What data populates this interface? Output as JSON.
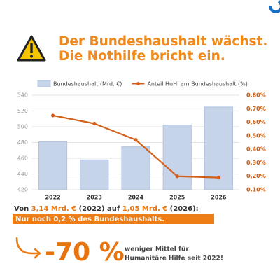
{
  "header": {
    "title_lines": [
      "Der Bundeshaushalt wächst.",
      "Die Nothilfe bricht ein."
    ]
  },
  "chart_data": {
    "type": "combo",
    "categories": [
      "2022",
      "2023",
      "2024",
      "2025",
      "2026"
    ],
    "series": [
      {
        "name": "Bundeshaushalt (Mrd. €)",
        "type": "bar",
        "color": "#c6d4ea",
        "values": [
          481,
          458,
          475,
          502,
          525
        ]
      },
      {
        "name": "Anteil HuHi am Bundeshaushalt (%)",
        "type": "line",
        "axis": "y2",
        "color": "#d2601a",
        "values": [
          0.65,
          0.59,
          0.47,
          0.2,
          0.19
        ]
      }
    ],
    "ylim": [
      420,
      540
    ],
    "yticks": [
      420,
      440,
      460,
      480,
      500,
      520,
      540
    ],
    "y2lim": [
      0.1,
      0.8
    ],
    "y2ticks": [
      {
        "value": 0.1,
        "label": "0,10%"
      },
      {
        "value": 0.2,
        "label": "0,20%"
      },
      {
        "value": 0.3,
        "label": "0,30%"
      },
      {
        "value": 0.4,
        "label": "0,40%"
      },
      {
        "value": 0.5,
        "label": "0,50%"
      },
      {
        "value": 0.6,
        "label": "0,60%"
      },
      {
        "value": 0.7,
        "label": "0,70%"
      },
      {
        "value": 0.8,
        "label": "0,80%"
      }
    ],
    "grid": true,
    "legend": "top"
  },
  "summary": {
    "parts": [
      "Von ",
      "3,14 Mrd. €",
      " (2022) auf ",
      "1,05 Mrd. €",
      " (2026):"
    ],
    "highlight": "Nur noch 0,2 % des Bundeshaushalts."
  },
  "callout": {
    "figure": "-70 %",
    "lines": [
      "weniger Mittel für",
      "Humanitäre Hilfe seit 2022!"
    ]
  }
}
